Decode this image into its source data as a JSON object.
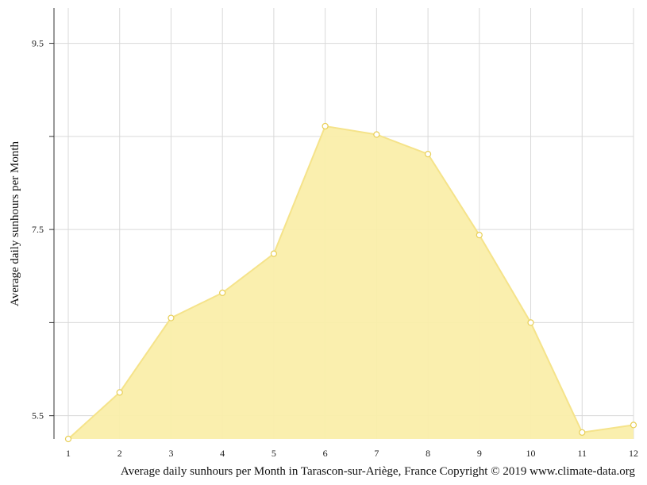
{
  "chart_data": {
    "type": "area",
    "x": [
      1,
      2,
      3,
      4,
      5,
      6,
      7,
      8,
      9,
      10,
      11,
      12
    ],
    "x_tick_labels": [
      "1",
      "2",
      "3",
      "4",
      "5",
      "6",
      "7",
      "8",
      "9",
      "10",
      "11",
      "12"
    ],
    "values": [
      5.25,
      5.75,
      6.55,
      6.82,
      7.24,
      8.61,
      8.52,
      8.31,
      7.44,
      6.5,
      5.32,
      5.4
    ],
    "ylabel": "Average daily sunhours per Month",
    "xlabel": "",
    "y_ticks": [
      5.5,
      6.5,
      7.5,
      8.5,
      9.5
    ],
    "y_tick_labels": [
      "5.5",
      "",
      "7.5",
      "",
      "9.5"
    ],
    "ylim": [
      5.25,
      9.88
    ],
    "xlim": [
      1,
      12
    ],
    "grid": true,
    "caption": "Average daily sunhours per Month in Tarascon-sur-Ariège, France Copyright © 2019 www.climate-data.org",
    "colors": {
      "fill": "#faeeaa",
      "line": "#f5e38a",
      "marker_stroke": "#e8cf58",
      "grid": "#d9d9d9",
      "axis": "#333333"
    }
  }
}
